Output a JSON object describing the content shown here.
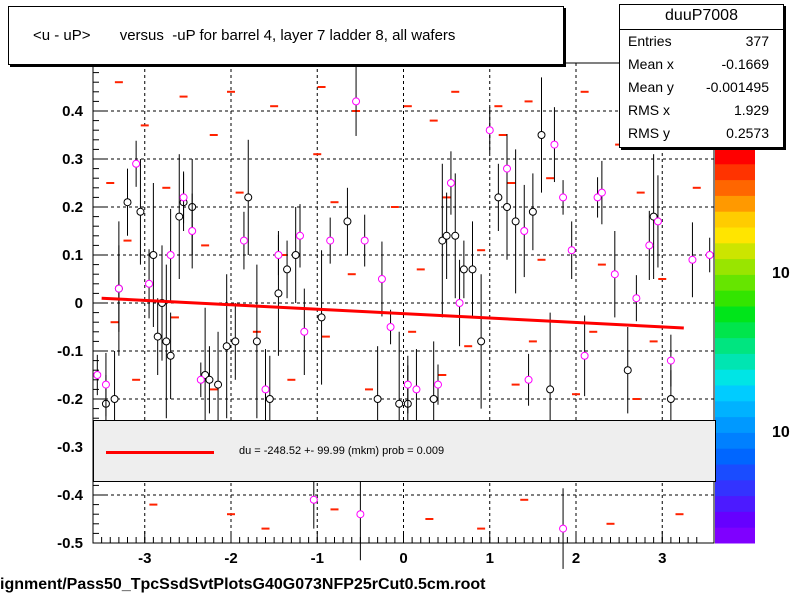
{
  "chart_data": {
    "type": "scatter",
    "title": "<u - uP>       versus  -uP for barrel 4, layer 7 ladder 8, all wafers",
    "xlabel": "",
    "ylabel": "",
    "xlim": [
      -3.6,
      3.6
    ],
    "ylim": [
      -0.5,
      0.5
    ],
    "x_ticks": [
      "-3",
      "-2",
      "-1",
      "0",
      "1",
      "2",
      "3"
    ],
    "y_ticks": [
      "-0.5",
      "-0.4",
      "-0.3",
      "-0.2",
      "-0.1",
      "0",
      "0.1",
      "0.2",
      "0.3",
      "0.4"
    ],
    "grid": true,
    "fit_line": {
      "x0": -3.5,
      "y0": 0.01,
      "x1": 3.25,
      "y1": -0.052,
      "color": "#ff0000"
    },
    "fit_label": "du = -248.52 +- 99.99 (mkm) prob = 0.009",
    "color_scale_labels": [
      "10",
      "10"
    ],
    "black_points": [
      {
        "x": -3.45,
        "y": -0.21
      },
      {
        "x": -3.35,
        "y": -0.2
      },
      {
        "x": -3.3,
        "y": 0.03
      },
      {
        "x": -3.2,
        "y": 0.21
      },
      {
        "x": -3.05,
        "y": 0.19
      },
      {
        "x": -2.9,
        "y": 0.1
      },
      {
        "x": -2.85,
        "y": -0.07
      },
      {
        "x": -2.8,
        "y": 0.0
      },
      {
        "x": -2.75,
        "y": -0.08
      },
      {
        "x": -2.7,
        "y": -0.11
      },
      {
        "x": -2.6,
        "y": 0.18
      },
      {
        "x": -2.55,
        "y": 0.21
      },
      {
        "x": -2.45,
        "y": 0.2
      },
      {
        "x": -2.3,
        "y": -0.15
      },
      {
        "x": -2.25,
        "y": -0.16
      },
      {
        "x": -2.15,
        "y": -0.17
      },
      {
        "x": -2.05,
        "y": -0.09
      },
      {
        "x": -1.95,
        "y": -0.08
      },
      {
        "x": -1.8,
        "y": 0.22
      },
      {
        "x": -1.7,
        "y": -0.08
      },
      {
        "x": -1.55,
        "y": -0.2
      },
      {
        "x": -1.45,
        "y": 0.02
      },
      {
        "x": -1.35,
        "y": 0.07
      },
      {
        "x": -1.25,
        "y": 0.1
      },
      {
        "x": -0.95,
        "y": -0.03
      },
      {
        "x": -0.65,
        "y": 0.17
      },
      {
        "x": -0.3,
        "y": -0.2
      },
      {
        "x": -0.05,
        "y": -0.21
      },
      {
        "x": 0.05,
        "y": -0.21
      },
      {
        "x": 0.35,
        "y": -0.2
      },
      {
        "x": 0.45,
        "y": 0.13
      },
      {
        "x": 0.5,
        "y": 0.14
      },
      {
        "x": 0.6,
        "y": 0.14
      },
      {
        "x": 0.7,
        "y": 0.07
      },
      {
        "x": 0.8,
        "y": 0.07
      },
      {
        "x": 0.9,
        "y": -0.08
      },
      {
        "x": 1.1,
        "y": 0.22
      },
      {
        "x": 1.2,
        "y": 0.2
      },
      {
        "x": 1.3,
        "y": 0.17
      },
      {
        "x": 1.5,
        "y": 0.19
      },
      {
        "x": 1.6,
        "y": 0.35
      },
      {
        "x": 1.7,
        "y": -0.18
      },
      {
        "x": 2.6,
        "y": -0.14
      },
      {
        "x": 2.9,
        "y": 0.18
      },
      {
        "x": 3.1,
        "y": -0.2
      }
    ],
    "magenta_points": [
      {
        "x": -3.55,
        "y": -0.15
      },
      {
        "x": -3.45,
        "y": -0.17
      },
      {
        "x": -3.3,
        "y": 0.03
      },
      {
        "x": -3.1,
        "y": 0.29
      },
      {
        "x": -2.95,
        "y": 0.04
      },
      {
        "x": -2.7,
        "y": 0.1
      },
      {
        "x": -2.55,
        "y": 0.22
      },
      {
        "x": -2.45,
        "y": 0.15
      },
      {
        "x": -2.35,
        "y": -0.16
      },
      {
        "x": -1.85,
        "y": 0.13
      },
      {
        "x": -1.6,
        "y": -0.18
      },
      {
        "x": -1.45,
        "y": 0.1
      },
      {
        "x": -1.2,
        "y": 0.14
      },
      {
        "x": -1.15,
        "y": -0.06
      },
      {
        "x": -0.85,
        "y": 0.13
      },
      {
        "x": -0.55,
        "y": 0.42
      },
      {
        "x": -0.5,
        "y": -0.44
      },
      {
        "x": -0.45,
        "y": 0.13
      },
      {
        "x": -0.25,
        "y": 0.05
      },
      {
        "x": -0.15,
        "y": -0.05
      },
      {
        "x": 0.05,
        "y": -0.17
      },
      {
        "x": 0.15,
        "y": -0.18
      },
      {
        "x": 0.4,
        "y": -0.17
      },
      {
        "x": 0.55,
        "y": 0.25
      },
      {
        "x": 0.65,
        "y": 0.0
      },
      {
        "x": 1.0,
        "y": 0.36
      },
      {
        "x": 1.2,
        "y": 0.28
      },
      {
        "x": 1.4,
        "y": 0.15
      },
      {
        "x": 1.45,
        "y": -0.16
      },
      {
        "x": 1.75,
        "y": 0.33
      },
      {
        "x": 1.85,
        "y": 0.22
      },
      {
        "x": 1.95,
        "y": 0.11
      },
      {
        "x": 2.1,
        "y": -0.11
      },
      {
        "x": 2.25,
        "y": 0.22
      },
      {
        "x": 2.3,
        "y": 0.23
      },
      {
        "x": 2.45,
        "y": 0.06
      },
      {
        "x": 2.7,
        "y": 0.01
      },
      {
        "x": 2.85,
        "y": 0.12
      },
      {
        "x": 2.95,
        "y": 0.17
      },
      {
        "x": 3.1,
        "y": -0.12
      },
      {
        "x": 3.35,
        "y": 0.09
      },
      {
        "x": 3.55,
        "y": 0.1
      },
      {
        "x": -1.04,
        "y": -0.41
      },
      {
        "x": 1.85,
        "y": -0.47
      }
    ],
    "red_markers": [
      {
        "x": -3.3,
        "y": 0.46
      },
      {
        "x": -2.55,
        "y": 0.43
      },
      {
        "x": -2.0,
        "y": 0.44
      },
      {
        "x": -1.5,
        "y": 0.41
      },
      {
        "x": -0.95,
        "y": 0.45
      },
      {
        "x": -0.55,
        "y": 0.4
      },
      {
        "x": 0.05,
        "y": 0.41
      },
      {
        "x": 0.6,
        "y": 0.44
      },
      {
        "x": 1.1,
        "y": 0.41
      },
      {
        "x": 1.45,
        "y": 0.42
      },
      {
        "x": 2.1,
        "y": 0.44
      },
      {
        "x": 3.0,
        "y": 0.41
      },
      {
        "x": -3.0,
        "y": 0.37
      },
      {
        "x": -2.2,
        "y": 0.35
      },
      {
        "x": -1.0,
        "y": 0.31
      },
      {
        "x": 0.35,
        "y": 0.38
      },
      {
        "x": 1.15,
        "y": 0.35
      },
      {
        "x": 2.5,
        "y": 0.33
      },
      {
        "x": -3.4,
        "y": 0.25
      },
      {
        "x": -2.75,
        "y": 0.24
      },
      {
        "x": -1.9,
        "y": 0.23
      },
      {
        "x": -0.8,
        "y": 0.21
      },
      {
        "x": -0.1,
        "y": 0.2
      },
      {
        "x": 0.5,
        "y": 0.22
      },
      {
        "x": 1.25,
        "y": 0.25
      },
      {
        "x": 1.7,
        "y": 0.26
      },
      {
        "x": 2.75,
        "y": 0.23
      },
      {
        "x": 3.4,
        "y": 0.24
      },
      {
        "x": -3.2,
        "y": 0.13
      },
      {
        "x": -2.3,
        "y": 0.12
      },
      {
        "x": -1.4,
        "y": 0.1
      },
      {
        "x": -0.6,
        "y": 0.06
      },
      {
        "x": 0.2,
        "y": 0.07
      },
      {
        "x": 0.9,
        "y": 0.11
      },
      {
        "x": 1.6,
        "y": 0.09
      },
      {
        "x": 2.3,
        "y": 0.08
      },
      {
        "x": 3.0,
        "y": 0.05
      },
      {
        "x": -3.35,
        "y": -0.04
      },
      {
        "x": -2.65,
        "y": -0.03
      },
      {
        "x": -1.7,
        "y": -0.06
      },
      {
        "x": -0.9,
        "y": -0.07
      },
      {
        "x": 0.1,
        "y": -0.06
      },
      {
        "x": 0.75,
        "y": -0.09
      },
      {
        "x": 1.5,
        "y": -0.08
      },
      {
        "x": 2.2,
        "y": -0.06
      },
      {
        "x": 2.9,
        "y": -0.08
      },
      {
        "x": -3.1,
        "y": -0.16
      },
      {
        "x": -2.2,
        "y": -0.18
      },
      {
        "x": -1.3,
        "y": -0.16
      },
      {
        "x": -0.4,
        "y": -0.18
      },
      {
        "x": 0.45,
        "y": -0.15
      },
      {
        "x": 1.3,
        "y": -0.17
      },
      {
        "x": 2.0,
        "y": -0.19
      },
      {
        "x": 2.7,
        "y": -0.2
      },
      {
        "x": -2.9,
        "y": -0.42
      },
      {
        "x": -2.0,
        "y": -0.44
      },
      {
        "x": -0.8,
        "y": -0.43
      },
      {
        "x": 0.3,
        "y": -0.45
      },
      {
        "x": 1.4,
        "y": -0.41
      },
      {
        "x": 2.4,
        "y": -0.46
      },
      {
        "x": -1.6,
        "y": -0.47
      },
      {
        "x": 0.9,
        "y": -0.47
      },
      {
        "x": 3.2,
        "y": -0.44
      }
    ]
  },
  "stats": {
    "name": "duuP7008",
    "rows": [
      {
        "label": "Entries",
        "value": "377"
      },
      {
        "label": "Mean x",
        "value": "-0.1669"
      },
      {
        "label": "Mean y",
        "value": "-0.001495"
      },
      {
        "label": "RMS x",
        "value": "1.929"
      },
      {
        "label": "RMS y",
        "value": "0.2573"
      }
    ]
  },
  "footer": "ignment/Pass50_TpcSsdSvtPlotsG40G073NFP25rCut0.5cm.root"
}
